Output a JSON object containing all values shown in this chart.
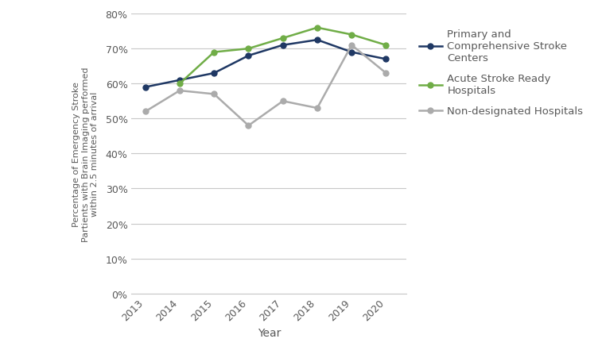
{
  "years": [
    2013,
    2014,
    2015,
    2016,
    2017,
    2018,
    2019,
    2020
  ],
  "primary": [
    0.59,
    0.61,
    0.63,
    0.68,
    0.71,
    0.725,
    0.69,
    0.67
  ],
  "acute": [
    null,
    0.6,
    0.69,
    0.7,
    0.73,
    0.76,
    0.74,
    0.71
  ],
  "nondesig": [
    0.52,
    0.58,
    0.57,
    0.48,
    0.55,
    0.53,
    0.71,
    0.63
  ],
  "primary_color": "#1F3864",
  "acute_color": "#70AD47",
  "nondesig_color": "#ABABAB",
  "primary_label": "Primary and\nComprehensive Stroke\nCenters",
  "acute_label": "Acute Stroke Ready\nHospitals",
  "nondesig_label": "Non-designated Hospitals",
  "ylabel": "Percentage of Emergency Stroke\nPartients with Brain Imaging performed\nwithin 2.5 minutes of arrival",
  "xlabel": "Year",
  "ylim": [
    0.0,
    0.8
  ],
  "yticks": [
    0.0,
    0.1,
    0.2,
    0.3,
    0.4,
    0.5,
    0.6,
    0.7,
    0.8
  ],
  "grid_color": "#C8C8C8",
  "marker": "o",
  "linewidth": 1.8,
  "markersize": 5,
  "bg_color": "#FFFFFF",
  "text_color": "#595959",
  "ylabel_fontsize": 8.0,
  "xlabel_fontsize": 10,
  "tick_fontsize": 9,
  "legend_fontsize": 9.5
}
